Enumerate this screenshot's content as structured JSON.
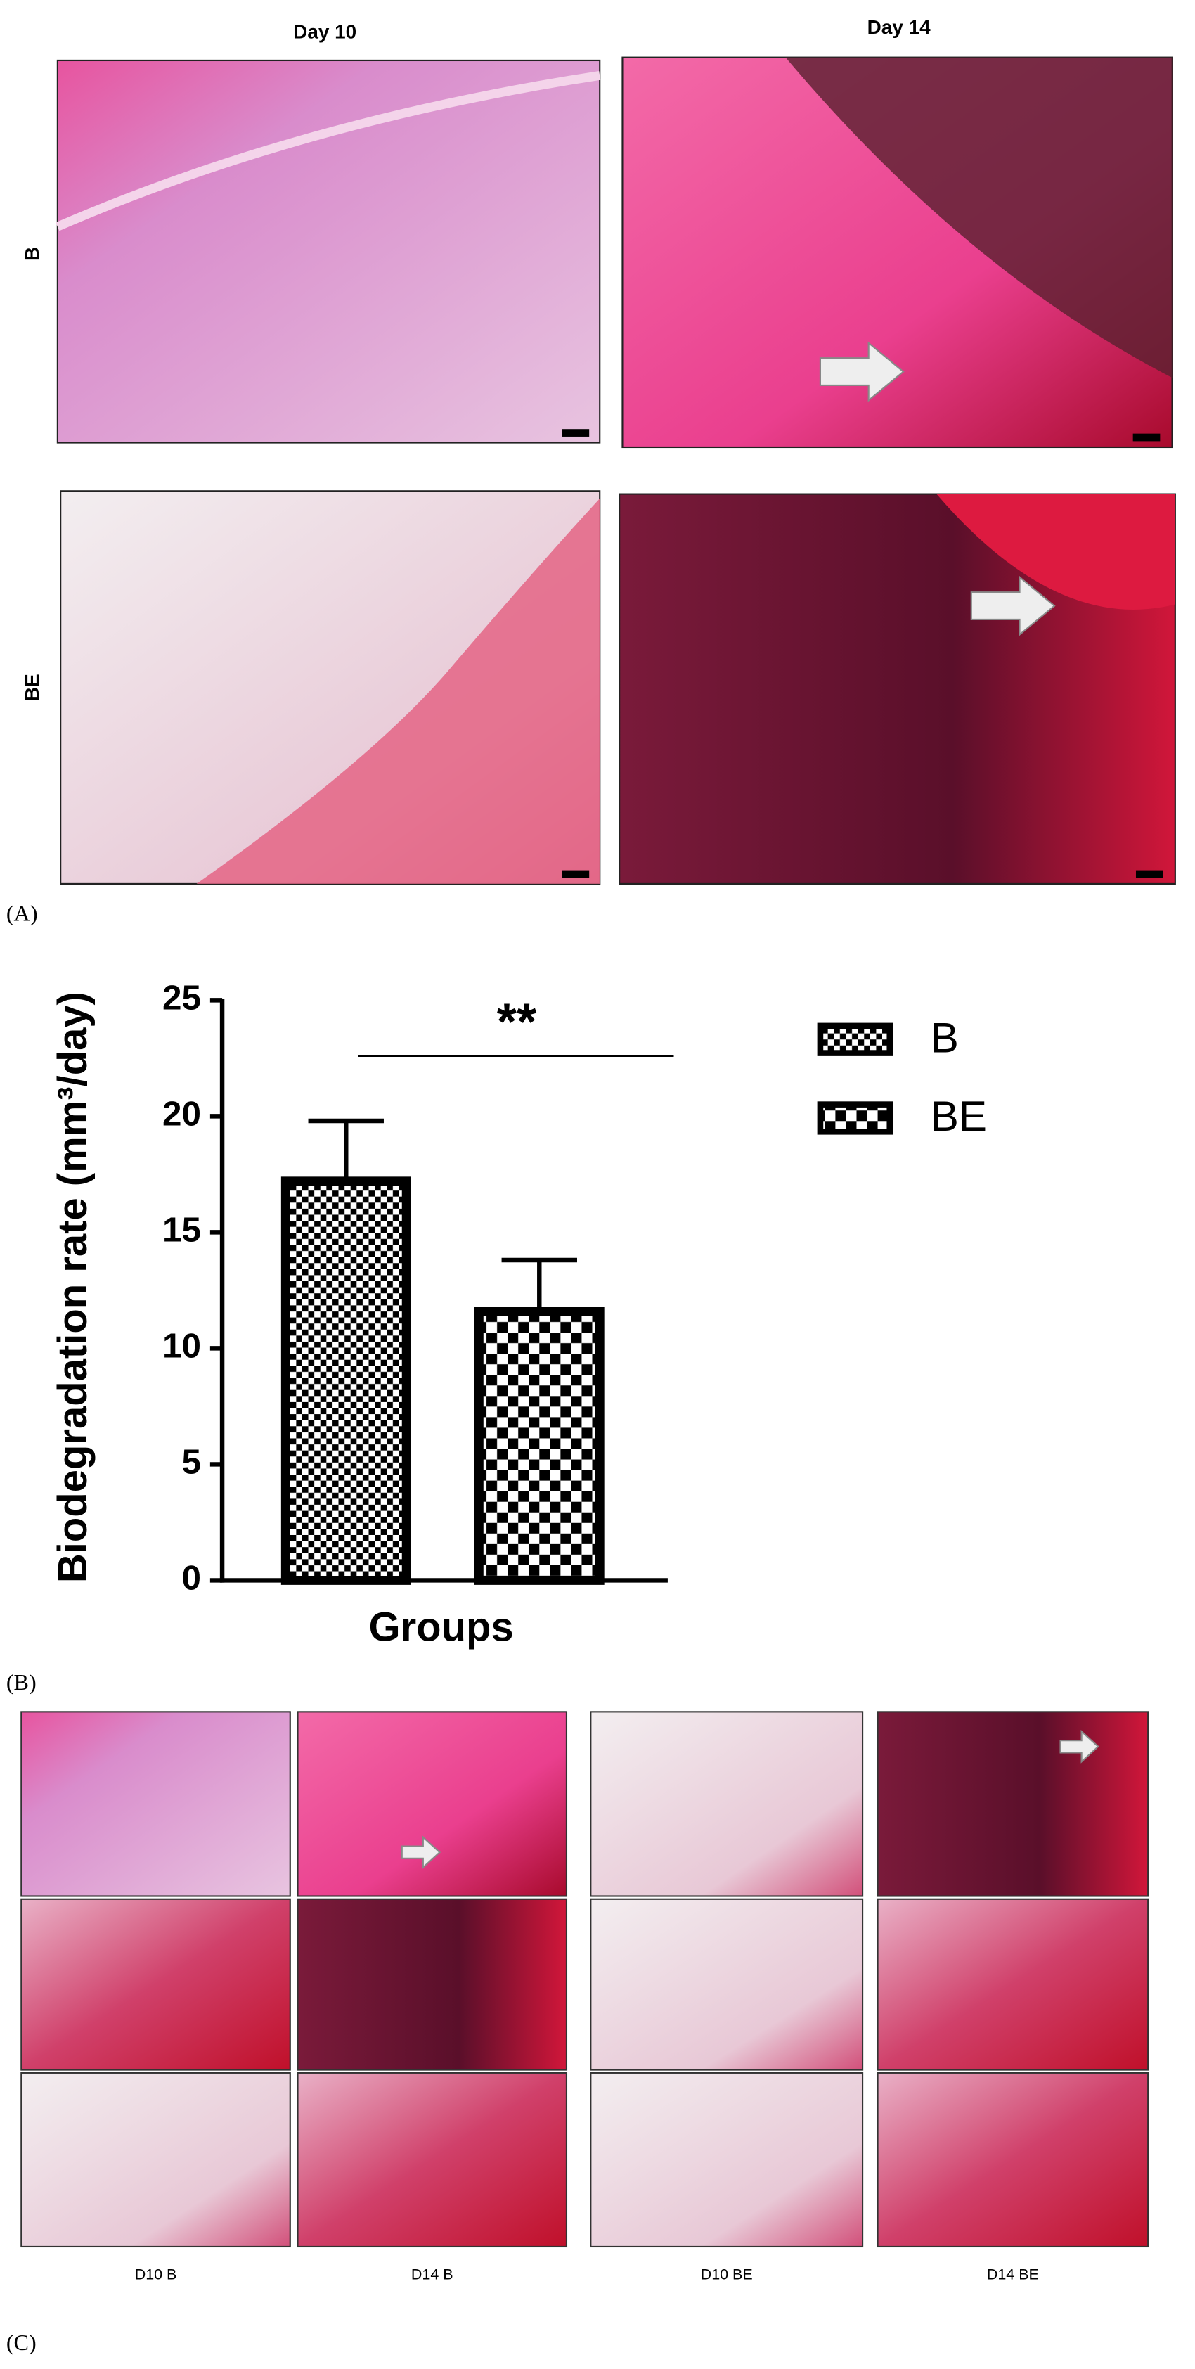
{
  "panel_a": {
    "label": "(A)",
    "columns": [
      "Day 10",
      "Day 14"
    ],
    "rows": [
      "B",
      "BE"
    ]
  },
  "chart_data": {
    "type": "bar",
    "panel_label": "(B)",
    "ylabel": "Biodegradation rate (mm³/day)",
    "xlabel": "Groups",
    "categories": [
      "B",
      "BE"
    ],
    "values": [
      17.2,
      11.6
    ],
    "errors": [
      2.6,
      2.2
    ],
    "ylim": [
      0,
      25
    ],
    "yticks": [
      0,
      5,
      10,
      15,
      20,
      25
    ],
    "annotation": "**",
    "legend": "upper right"
  },
  "panel_c": {
    "label": "(C)",
    "captions": [
      "D10 B",
      "D14 B",
      "D10 BE",
      "D14 BE"
    ]
  }
}
